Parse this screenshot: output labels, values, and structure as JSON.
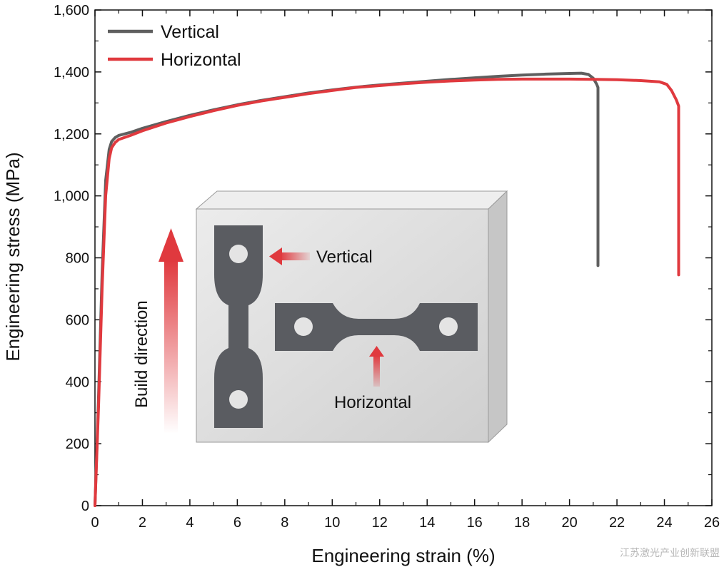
{
  "chart_data": {
    "type": "line",
    "title": "",
    "xlabel": "Engineering strain (%)",
    "ylabel": "Engineering stress (MPa)",
    "xlim": [
      0,
      26
    ],
    "ylim": [
      0,
      1600
    ],
    "x_ticks": [
      0,
      2,
      4,
      6,
      8,
      10,
      12,
      14,
      16,
      18,
      20,
      22,
      24,
      26
    ],
    "x_tick_labels": [
      "0",
      "2",
      "4",
      "6",
      "8",
      "10",
      "12",
      "14",
      "16",
      "18",
      "20",
      "22",
      "24",
      "26"
    ],
    "y_ticks": [
      0,
      200,
      400,
      600,
      800,
      1000,
      1200,
      1400,
      1600
    ],
    "y_tick_labels": [
      "0",
      "200",
      "400",
      "600",
      "800",
      "1,000",
      "1,200",
      "1,400",
      "1,600"
    ],
    "grid": false,
    "legend_position": "top-left",
    "series": [
      {
        "name": "Vertical",
        "color": "#5f5f5f",
        "x": [
          0,
          0.15,
          0.3,
          0.45,
          0.6,
          0.7,
          0.85,
          1.0,
          1.5,
          2,
          3,
          4,
          5,
          6,
          7,
          8,
          9,
          10,
          11,
          12,
          13,
          14,
          15,
          16,
          17,
          18,
          19,
          20,
          20.5,
          20.8,
          21.0,
          21.15,
          21.2,
          21.2,
          21.2
        ],
        "y": [
          0,
          350,
          750,
          1050,
          1150,
          1175,
          1188,
          1195,
          1205,
          1218,
          1240,
          1260,
          1278,
          1294,
          1308,
          1320,
          1332,
          1342,
          1351,
          1358,
          1364,
          1370,
          1376,
          1381,
          1386,
          1390,
          1393,
          1395,
          1396,
          1392,
          1380,
          1360,
          1350,
          1100,
          775
        ]
      },
      {
        "name": "Horizontal",
        "color": "#e0393e",
        "x": [
          0,
          0.15,
          0.3,
          0.45,
          0.6,
          0.7,
          0.85,
          1.0,
          1.5,
          2,
          3,
          4,
          5,
          6,
          7,
          8,
          9,
          10,
          11,
          12,
          13,
          14,
          15,
          16,
          17,
          18,
          19,
          20,
          21,
          22,
          23,
          23.8,
          24.1,
          24.3,
          24.5,
          24.6,
          24.6,
          24.6
        ],
        "y": [
          0,
          320,
          700,
          1000,
          1120,
          1155,
          1172,
          1182,
          1195,
          1210,
          1235,
          1256,
          1275,
          1292,
          1306,
          1318,
          1330,
          1340,
          1350,
          1356,
          1362,
          1367,
          1371,
          1374,
          1376,
          1377,
          1377,
          1377,
          1376,
          1375,
          1372,
          1368,
          1360,
          1340,
          1310,
          1290,
          1000,
          745
        ]
      }
    ]
  },
  "inset": {
    "build_direction_label": "Build direction",
    "vertical_label": "Vertical",
    "horizontal_label": "Horizontal",
    "block_color": "#d9d9d9",
    "specimen_color": "#5a5c61",
    "arrow_color": "#e0393e"
  },
  "watermark": "江苏激光产业创新联盟"
}
